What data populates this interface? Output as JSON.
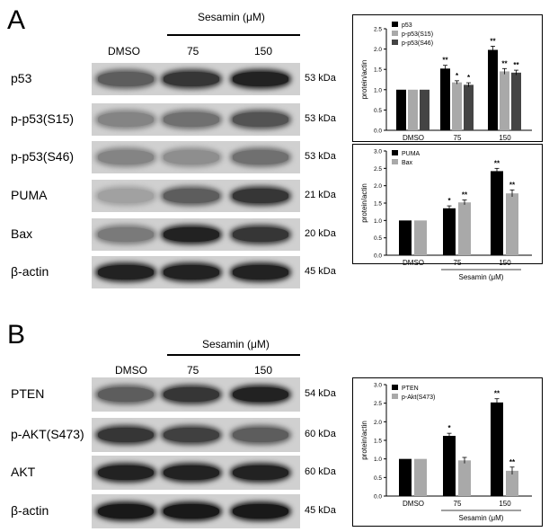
{
  "panelA": {
    "letter": "A",
    "treatment_header": "Sesamin (μM)",
    "columns": [
      "DMSO",
      "75",
      "150"
    ],
    "rows": [
      {
        "label": "p53",
        "kda": "53 kDa",
        "levels": [
          0.55,
          0.75,
          0.85
        ]
      },
      {
        "label": "p-p53(S15)",
        "kda": "53 kDa",
        "levels": [
          0.35,
          0.45,
          0.6
        ]
      },
      {
        "label": "p-p53(S46)",
        "kda": "53 kDa",
        "levels": [
          0.35,
          0.3,
          0.45
        ]
      },
      {
        "label": "PUMA",
        "kda": "21 kDa",
        "levels": [
          0.2,
          0.55,
          0.75
        ]
      },
      {
        "label": "Bax",
        "kda": "20 kDa",
        "levels": [
          0.4,
          0.85,
          0.75
        ]
      },
      {
        "label": "β-actin",
        "kda": "45 kDa",
        "levels": [
          0.85,
          0.85,
          0.85
        ]
      }
    ]
  },
  "panelB": {
    "letter": "B",
    "treatment_header": "Sesamin (μM)",
    "columns": [
      "DMSO",
      "75",
      "150"
    ],
    "rows": [
      {
        "label": "PTEN",
        "kda": "54 kDa",
        "levels": [
          0.55,
          0.75,
          0.85
        ]
      },
      {
        "label": "p-AKT(S473)",
        "kda": "60 kDa",
        "levels": [
          0.75,
          0.7,
          0.55
        ]
      },
      {
        "label": "AKT",
        "kda": "60 kDa",
        "levels": [
          0.85,
          0.85,
          0.85
        ]
      },
      {
        "label": "β-actin",
        "kda": "45 kDa",
        "levels": [
          0.9,
          0.9,
          0.9
        ]
      }
    ]
  },
  "chart_data": [
    {
      "type": "bar",
      "categories": [
        "DMSO",
        "75",
        "150"
      ],
      "xlabel": "Sesamin (μM)",
      "ylabel": "protein/actin",
      "ylim": [
        0,
        2.5
      ],
      "yticks": [
        "0.0",
        "0.5",
        "1.0",
        "1.5",
        "2.0",
        "2.5"
      ],
      "legend_position": "top-left",
      "series": [
        {
          "name": "p53",
          "values": [
            1.0,
            1.52,
            1.98
          ],
          "errors": [
            0,
            0.08,
            0.09
          ],
          "marks": [
            "",
            "**",
            "**"
          ],
          "color": "#000000"
        },
        {
          "name": "p-p53(S15)",
          "values": [
            1.0,
            1.18,
            1.45
          ],
          "errors": [
            0,
            0.04,
            0.07
          ],
          "marks": [
            "",
            "*",
            "**"
          ],
          "color": "#a9a9a9"
        },
        {
          "name": "p-p53(S46)",
          "values": [
            1.0,
            1.12,
            1.42
          ],
          "errors": [
            0,
            0.05,
            0.06
          ],
          "marks": [
            "",
            "*",
            "**"
          ],
          "color": "#444444"
        }
      ]
    },
    {
      "type": "bar",
      "categories": [
        "DMSO",
        "75",
        "150"
      ],
      "xlabel": "Sesamin (μM)",
      "ylabel": "protein/actin",
      "ylim": [
        0,
        3.0
      ],
      "yticks": [
        "0.0",
        "0.5",
        "1.0",
        "1.5",
        "2.0",
        "2.5",
        "3.0"
      ],
      "legend_position": "top-left",
      "series": [
        {
          "name": "PUMA",
          "values": [
            1.0,
            1.35,
            2.42
          ],
          "errors": [
            0,
            0.07,
            0.08
          ],
          "marks": [
            "",
            "*",
            "**"
          ],
          "color": "#000000"
        },
        {
          "name": "Bax",
          "values": [
            1.0,
            1.52,
            1.78
          ],
          "errors": [
            0,
            0.07,
            0.1
          ],
          "marks": [
            "",
            "**",
            "**"
          ],
          "color": "#a9a9a9"
        }
      ]
    },
    {
      "type": "bar",
      "categories": [
        "DMSO",
        "75",
        "150"
      ],
      "xlabel": "Sesamin (μM)",
      "ylabel": "protein/actin",
      "ylim": [
        0,
        3.0
      ],
      "yticks": [
        "0.0",
        "0.5",
        "1.0",
        "1.5",
        "2.0",
        "2.5",
        "3.0"
      ],
      "legend_position": "top-left",
      "series": [
        {
          "name": "PTEN",
          "values": [
            1.0,
            1.62,
            2.52
          ],
          "errors": [
            0,
            0.07,
            0.1
          ],
          "marks": [
            "",
            "*",
            "**"
          ],
          "color": "#000000"
        },
        {
          "name": "p-Akt(S473)",
          "values": [
            1.0,
            0.96,
            0.68
          ],
          "errors": [
            0,
            0.08,
            0.1
          ],
          "marks": [
            "",
            "",
            "**"
          ],
          "color": "#a9a9a9"
        }
      ]
    }
  ]
}
